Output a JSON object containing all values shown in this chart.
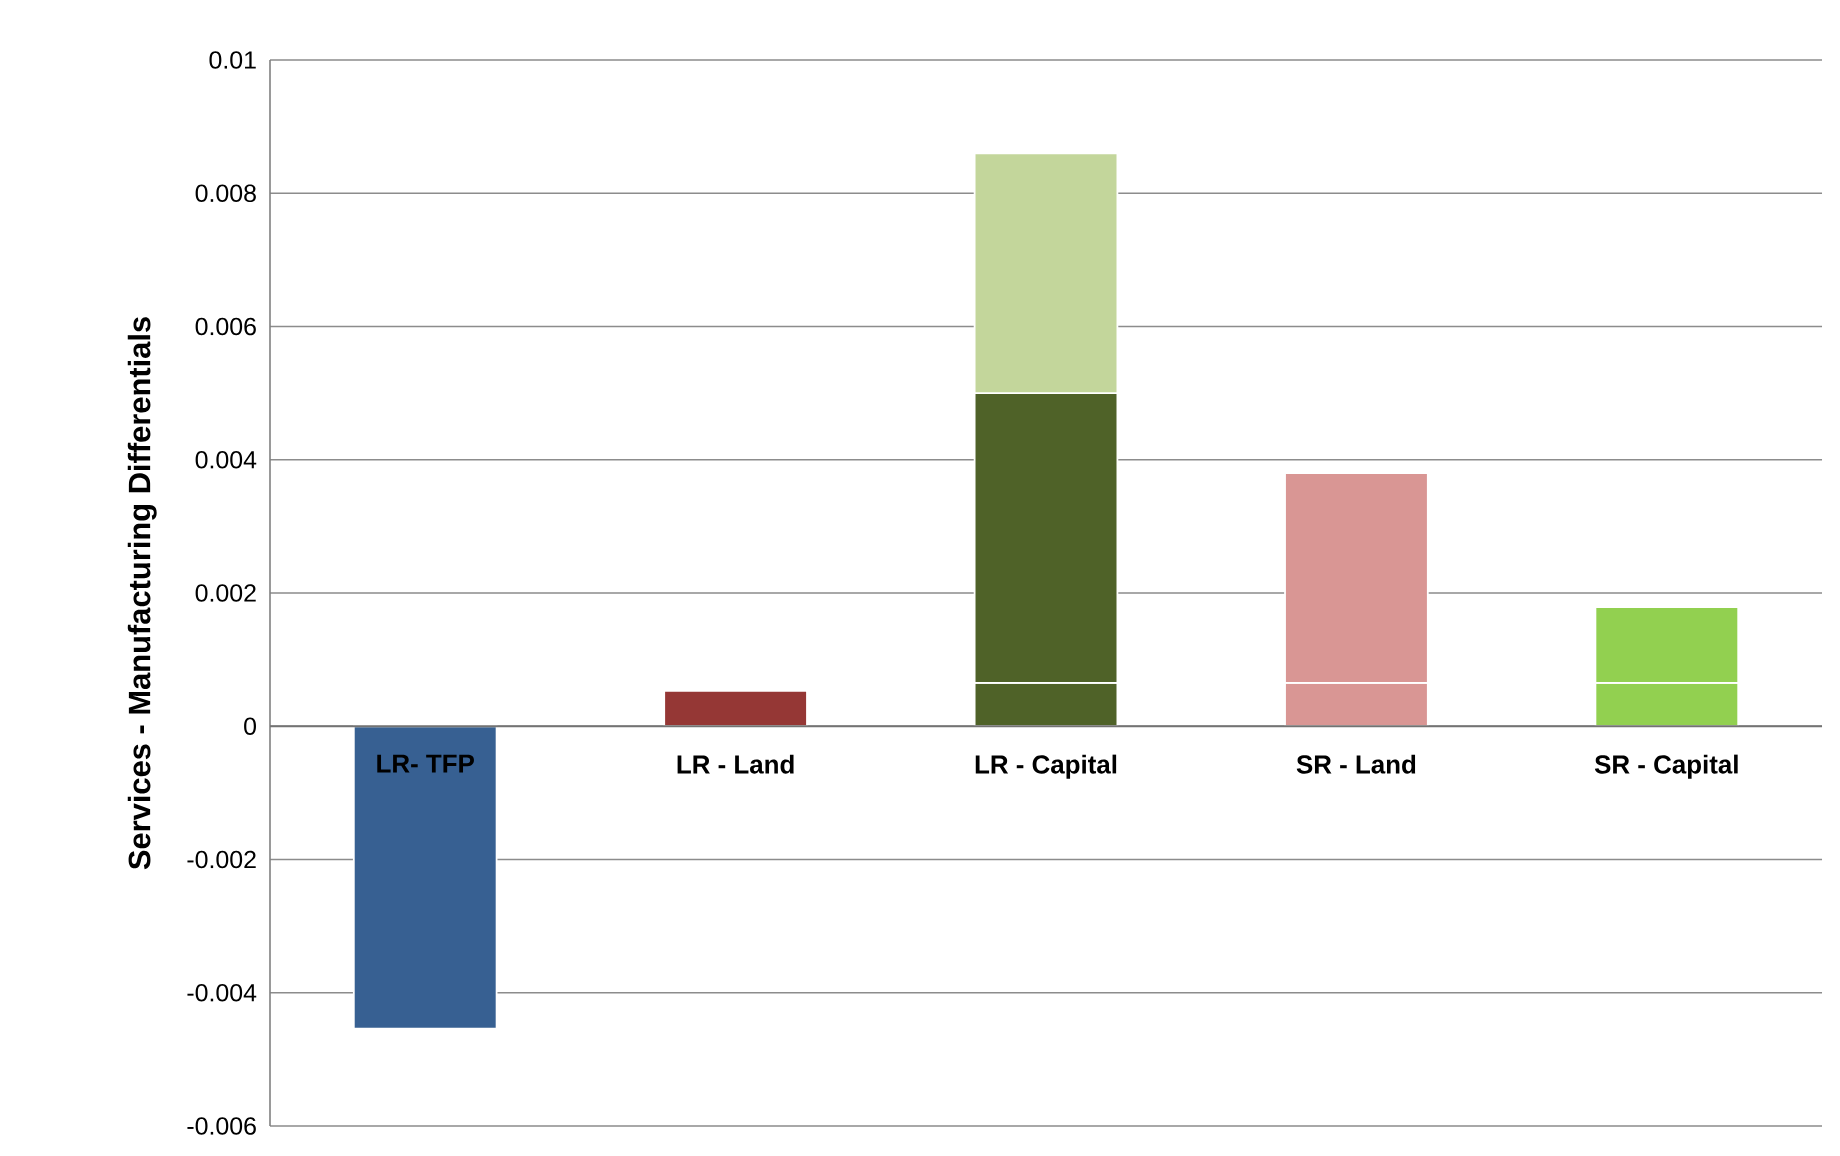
{
  "chart_data": {
    "type": "bar",
    "stacked": true,
    "ylabel": "Services - Manufacturing Differentials",
    "categories": [
      "LR- TFP",
      "LR - Land",
      "LR - Capital",
      "SR - Land",
      "SR - Capital"
    ],
    "series": [
      {
        "colors": [
          "#376092",
          "#953735",
          "#4f6228",
          "#d99694",
          "#92d050"
        ],
        "values": [
          -0.00454,
          0.00053,
          0.00065,
          0.00065,
          0.00065
        ]
      },
      {
        "colors": [
          null,
          null,
          "#4f6228",
          "#d99694",
          "#92d050"
        ],
        "values": [
          null,
          null,
          0.00435,
          0.00315,
          0.00114
        ]
      },
      {
        "colors": [
          null,
          null,
          "#c3d69b",
          null,
          null
        ],
        "values": [
          null,
          null,
          0.0036,
          null,
          null
        ]
      }
    ],
    "ylim": [
      -0.006,
      0.01
    ],
    "yticks": [
      -0.006,
      -0.004,
      -0.002,
      0,
      0.002,
      0.004,
      0.006,
      0.008,
      0.01
    ],
    "grid": "y"
  }
}
